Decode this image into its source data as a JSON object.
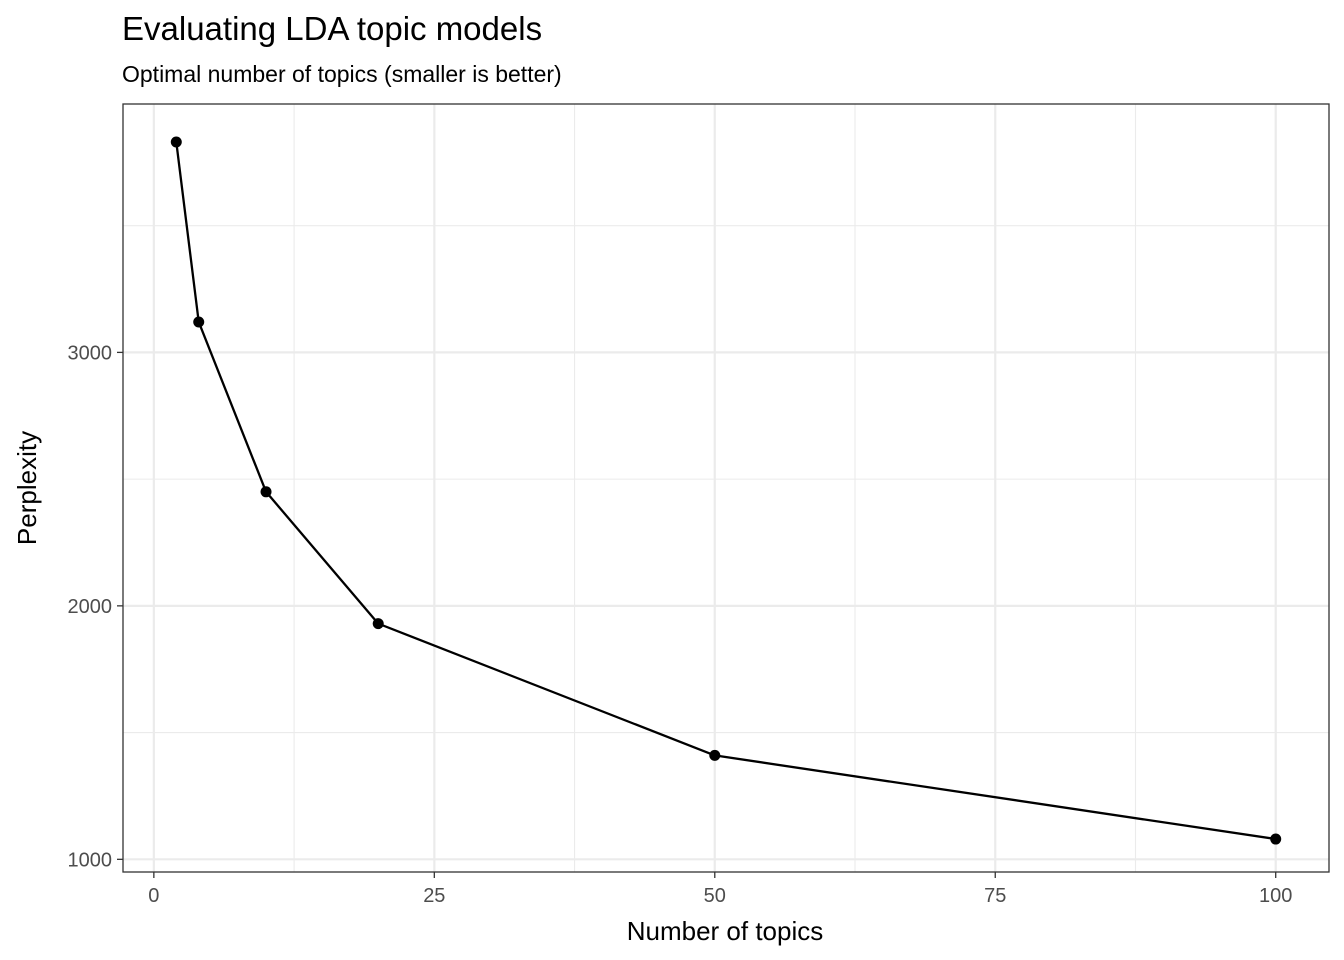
{
  "chart_data": {
    "type": "line",
    "title": "Evaluating LDA topic models",
    "subtitle": "Optimal number of topics (smaller is better)",
    "xlabel": "Number of topics",
    "ylabel": "Perplexity",
    "xlim": [
      -2.75,
      104.75
    ],
    "ylim": [
      950,
      3980
    ],
    "x_ticks": [
      0,
      25,
      50,
      75,
      100
    ],
    "x_tick_labels": [
      "0",
      "25",
      "50",
      "75",
      "100"
    ],
    "x_minor_ticks": [
      12.5,
      37.5,
      62.5,
      87.5
    ],
    "y_ticks": [
      1000,
      2000,
      3000
    ],
    "y_tick_labels": [
      "1000",
      "2000",
      "3000"
    ],
    "y_minor_ticks": [
      1500,
      2500,
      3500
    ],
    "grid": true,
    "series": [
      {
        "x": [
          2,
          4,
          10,
          20,
          50,
          100
        ],
        "values": [
          3830,
          3120,
          2450,
          1930,
          1410,
          1080
        ]
      }
    ],
    "colors": {
      "line": "#000000",
      "points": "#000000",
      "panel_border": "#333333",
      "grid": "#ebebeb",
      "tick_text": "#4d4d4d"
    }
  }
}
